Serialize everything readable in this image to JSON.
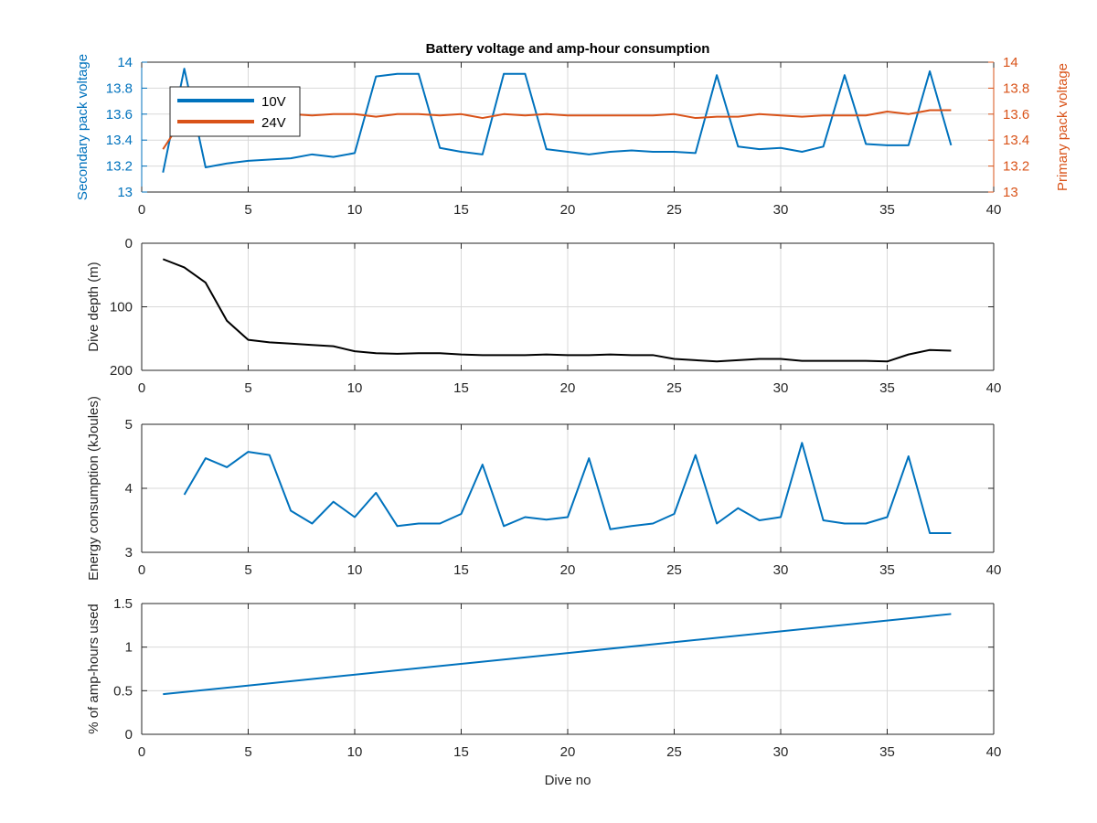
{
  "figure": {
    "title": "Battery voltage and amp-hour consumption"
  },
  "colors": {
    "blue": "#0072BD",
    "orange": "#D95319",
    "black": "#000000",
    "grid": "#d9d9d9",
    "axis_text": "#262626"
  },
  "chart_data": [
    {
      "type": "line",
      "title": "Battery voltage and amp-hour consumption",
      "xlabel": "",
      "ylabel": "Secondary pack voltage",
      "ylabel_right": "Primary pack voltage",
      "xlim": [
        0,
        40
      ],
      "ylim": [
        13,
        14
      ],
      "ylim_right": [
        13,
        14
      ],
      "x_ticks": [
        "0",
        "5",
        "10",
        "15",
        "20",
        "25",
        "30",
        "35",
        "40"
      ],
      "y_ticks": [
        "13",
        "13.2",
        "13.4",
        "13.6",
        "13.8",
        "14"
      ],
      "y_ticks_right": [
        "13",
        "13.2",
        "13.4",
        "13.6",
        "13.8",
        "14"
      ],
      "grid": true,
      "legend_position": "top-left",
      "x": [
        1,
        2,
        3,
        4,
        5,
        6,
        7,
        8,
        9,
        10,
        11,
        12,
        13,
        14,
        15,
        16,
        17,
        18,
        19,
        20,
        21,
        22,
        23,
        24,
        25,
        26,
        27,
        28,
        29,
        30,
        31,
        32,
        33,
        34,
        35,
        36,
        37,
        38
      ],
      "series": [
        {
          "name": "10V",
          "axis": "left",
          "color": "#0072BD",
          "values": [
            13.15,
            13.95,
            13.19,
            13.22,
            13.24,
            13.25,
            13.26,
            13.29,
            13.27,
            13.3,
            13.89,
            13.91,
            13.91,
            13.34,
            13.31,
            13.29,
            13.91,
            13.91,
            13.33,
            13.31,
            13.29,
            13.31,
            13.32,
            13.31,
            13.31,
            13.3,
            13.9,
            13.35,
            13.33,
            13.34,
            13.31,
            13.35,
            13.9,
            13.37,
            13.36,
            13.36,
            13.93,
            13.36
          ]
        },
        {
          "name": "24V",
          "axis": "right",
          "color": "#D95319",
          "values": [
            13.33,
            13.58,
            13.59,
            13.59,
            13.6,
            13.59,
            13.6,
            13.59,
            13.6,
            13.6,
            13.58,
            13.6,
            13.6,
            13.59,
            13.6,
            13.57,
            13.6,
            13.59,
            13.6,
            13.59,
            13.59,
            13.59,
            13.59,
            13.59,
            13.6,
            13.57,
            13.58,
            13.58,
            13.6,
            13.59,
            13.58,
            13.59,
            13.59,
            13.59,
            13.62,
            13.6,
            13.63,
            13.63
          ]
        }
      ]
    },
    {
      "type": "line",
      "title": "",
      "xlabel": "",
      "ylabel": "Dive depth (m)",
      "xlim": [
        0,
        40
      ],
      "ylim": [
        0,
        200
      ],
      "y_reversed": true,
      "x_ticks": [
        "0",
        "5",
        "10",
        "15",
        "20",
        "25",
        "30",
        "35",
        "40"
      ],
      "y_ticks": [
        "0",
        "100",
        "200"
      ],
      "grid": true,
      "x": [
        1,
        2,
        3,
        4,
        5,
        6,
        7,
        8,
        9,
        10,
        11,
        12,
        13,
        14,
        15,
        16,
        17,
        18,
        19,
        20,
        21,
        22,
        23,
        24,
        25,
        26,
        27,
        28,
        29,
        30,
        31,
        32,
        33,
        34,
        35,
        36,
        37,
        38
      ],
      "series": [
        {
          "color": "#000000",
          "values": [
            25,
            38,
            62,
            122,
            152,
            156,
            158,
            160,
            162,
            170,
            173,
            174,
            173,
            173,
            175,
            176,
            176,
            176,
            175,
            176,
            176,
            175,
            176,
            176,
            182,
            184,
            186,
            184,
            182,
            182,
            185,
            185,
            185,
            185,
            186,
            175,
            168,
            169
          ]
        }
      ]
    },
    {
      "type": "line",
      "title": "",
      "xlabel": "",
      "ylabel": "Energy consumption (kJoules)",
      "xlim": [
        0,
        40
      ],
      "ylim": [
        3,
        5
      ],
      "x_ticks": [
        "0",
        "5",
        "10",
        "15",
        "20",
        "25",
        "30",
        "35",
        "40"
      ],
      "y_ticks": [
        "3",
        "4",
        "5"
      ],
      "grid": true,
      "x": [
        2,
        3,
        4,
        5,
        6,
        7,
        8,
        9,
        10,
        11,
        12,
        13,
        14,
        15,
        16,
        17,
        18,
        19,
        20,
        21,
        22,
        23,
        24,
        25,
        26,
        27,
        28,
        29,
        30,
        31,
        32,
        33,
        34,
        35,
        36,
        37,
        38
      ],
      "series": [
        {
          "color": "#0072BD",
          "values": [
            3.9,
            4.47,
            4.33,
            4.57,
            4.52,
            3.65,
            3.45,
            3.79,
            3.55,
            3.93,
            3.41,
            3.45,
            3.45,
            3.6,
            4.37,
            3.41,
            3.55,
            3.51,
            3.55,
            4.47,
            3.36,
            3.41,
            3.45,
            3.6,
            4.52,
            3.45,
            3.69,
            3.5,
            3.55,
            4.71,
            3.5,
            3.45,
            3.45,
            3.55,
            4.5,
            3.3,
            3.3
          ]
        }
      ]
    },
    {
      "type": "line",
      "title": "",
      "xlabel": "Dive no",
      "ylabel": "% of amp-hours used",
      "xlim": [
        0,
        40
      ],
      "ylim": [
        0,
        1.5
      ],
      "x_ticks": [
        "0",
        "5",
        "10",
        "15",
        "20",
        "25",
        "30",
        "35",
        "40"
      ],
      "y_ticks": [
        "0",
        "0.5",
        "1",
        "1.5"
      ],
      "grid": true,
      "x": [
        1,
        38
      ],
      "series": [
        {
          "color": "#0072BD",
          "values": [
            0.46,
            1.38
          ]
        }
      ]
    }
  ]
}
